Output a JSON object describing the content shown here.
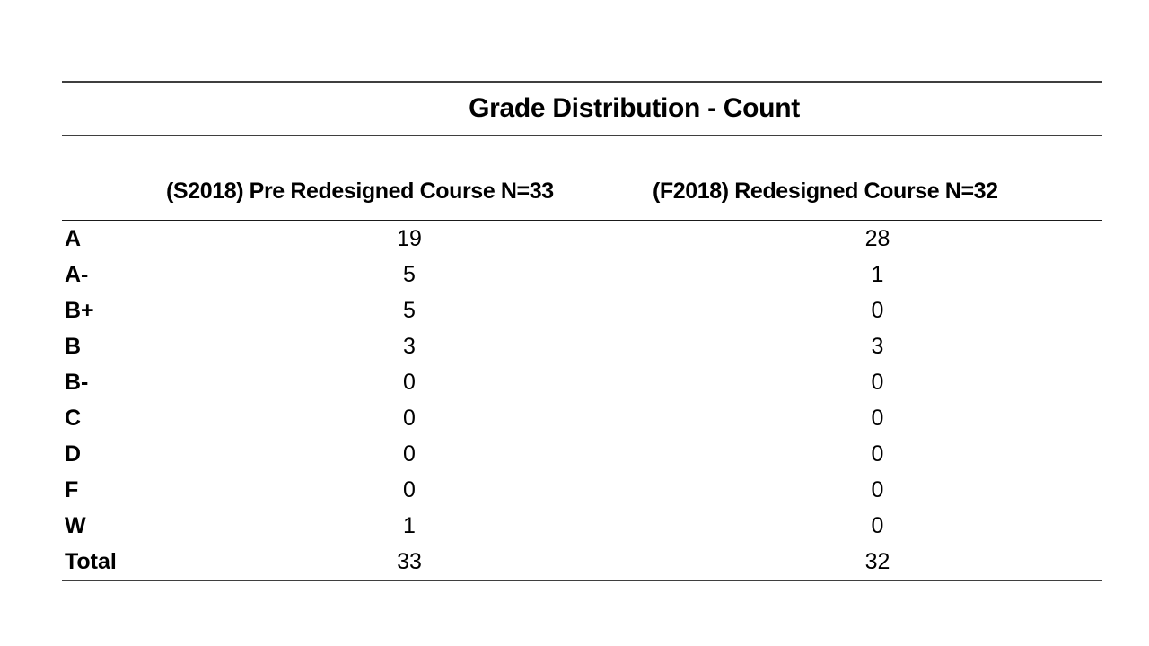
{
  "table": {
    "title": "Grade Distribution - Count",
    "header_pre": "(S2018) Pre Redesigned Course N=33",
    "header_post": "(F2018) Redesigned Course N=32",
    "rows": [
      {
        "grade": "A",
        "pre": "19",
        "post": "28"
      },
      {
        "grade": "A-",
        "pre": "5",
        "post": "1"
      },
      {
        "grade": "B+",
        "pre": "5",
        "post": "0"
      },
      {
        "grade": "B",
        "pre": "3",
        "post": "3"
      },
      {
        "grade": "B-",
        "pre": "0",
        "post": "0"
      },
      {
        "grade": "C",
        "pre": "0",
        "post": "0"
      },
      {
        "grade": "D",
        "pre": "0",
        "post": "0"
      },
      {
        "grade": "F",
        "pre": "0",
        "post": "0"
      },
      {
        "grade": "W",
        "pre": "1",
        "post": "0"
      },
      {
        "grade": "Total",
        "pre": "33",
        "post": "32"
      }
    ]
  },
  "colors": {
    "rule_heavy": "#3f3f3f",
    "rule_light": "#1a1a1a",
    "text": "#000000",
    "background": "#ffffff"
  },
  "chart_data": {
    "type": "table",
    "title": "Grade Distribution - Count",
    "columns": [
      "Grade",
      "(S2018) Pre Redesigned Course N=33",
      "(F2018) Redesigned Course N=32"
    ],
    "categories": [
      "A",
      "A-",
      "B+",
      "B",
      "B-",
      "C",
      "D",
      "F",
      "W",
      "Total"
    ],
    "series": [
      {
        "name": "(S2018) Pre Redesigned Course N=33",
        "values": [
          19,
          5,
          5,
          3,
          0,
          0,
          0,
          0,
          1,
          33
        ]
      },
      {
        "name": "(F2018) Redesigned Course N=32",
        "values": [
          28,
          1,
          0,
          3,
          0,
          0,
          0,
          0,
          0,
          32
        ]
      }
    ],
    "layout_hints": {
      "grid": "horizontal rules only",
      "label_alignment": "left-bold",
      "value_alignment": "center"
    }
  }
}
